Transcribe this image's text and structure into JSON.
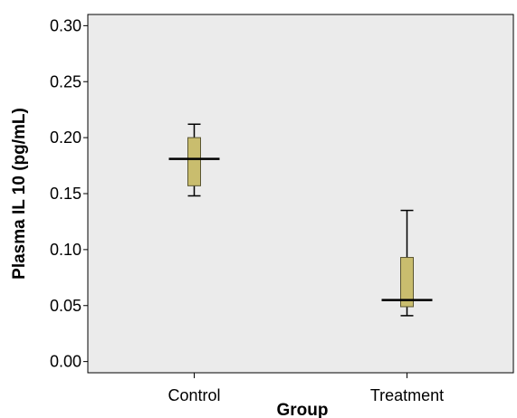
{
  "chart_data": {
    "type": "box",
    "title": "",
    "xlabel": "Group",
    "ylabel": "Plasma IL 10 (pg/mL)",
    "ylim": [
      -0.01,
      0.31
    ],
    "yticks": [
      "0.30",
      "0.25",
      "0.20",
      "0.15",
      "0.10",
      "0.05",
      "0.00"
    ],
    "ytick_values": [
      0.3,
      0.25,
      0.2,
      0.15,
      0.1,
      0.05,
      0.0
    ],
    "categories": [
      "Control",
      "Treatment"
    ],
    "boxes": [
      {
        "category": "Control",
        "min": 0.148,
        "q1": 0.157,
        "median": 0.181,
        "q3": 0.2,
        "max": 0.212
      },
      {
        "category": "Treatment",
        "min": 0.041,
        "q1": 0.049,
        "median": 0.055,
        "q3": 0.093,
        "max": 0.135
      }
    ],
    "grid": false,
    "legend": "none",
    "colors": {
      "plot_background": "#ebebeb",
      "box_fill": "#c9bd6e",
      "box_stroke": "#5a5530",
      "line": "#000000"
    }
  }
}
